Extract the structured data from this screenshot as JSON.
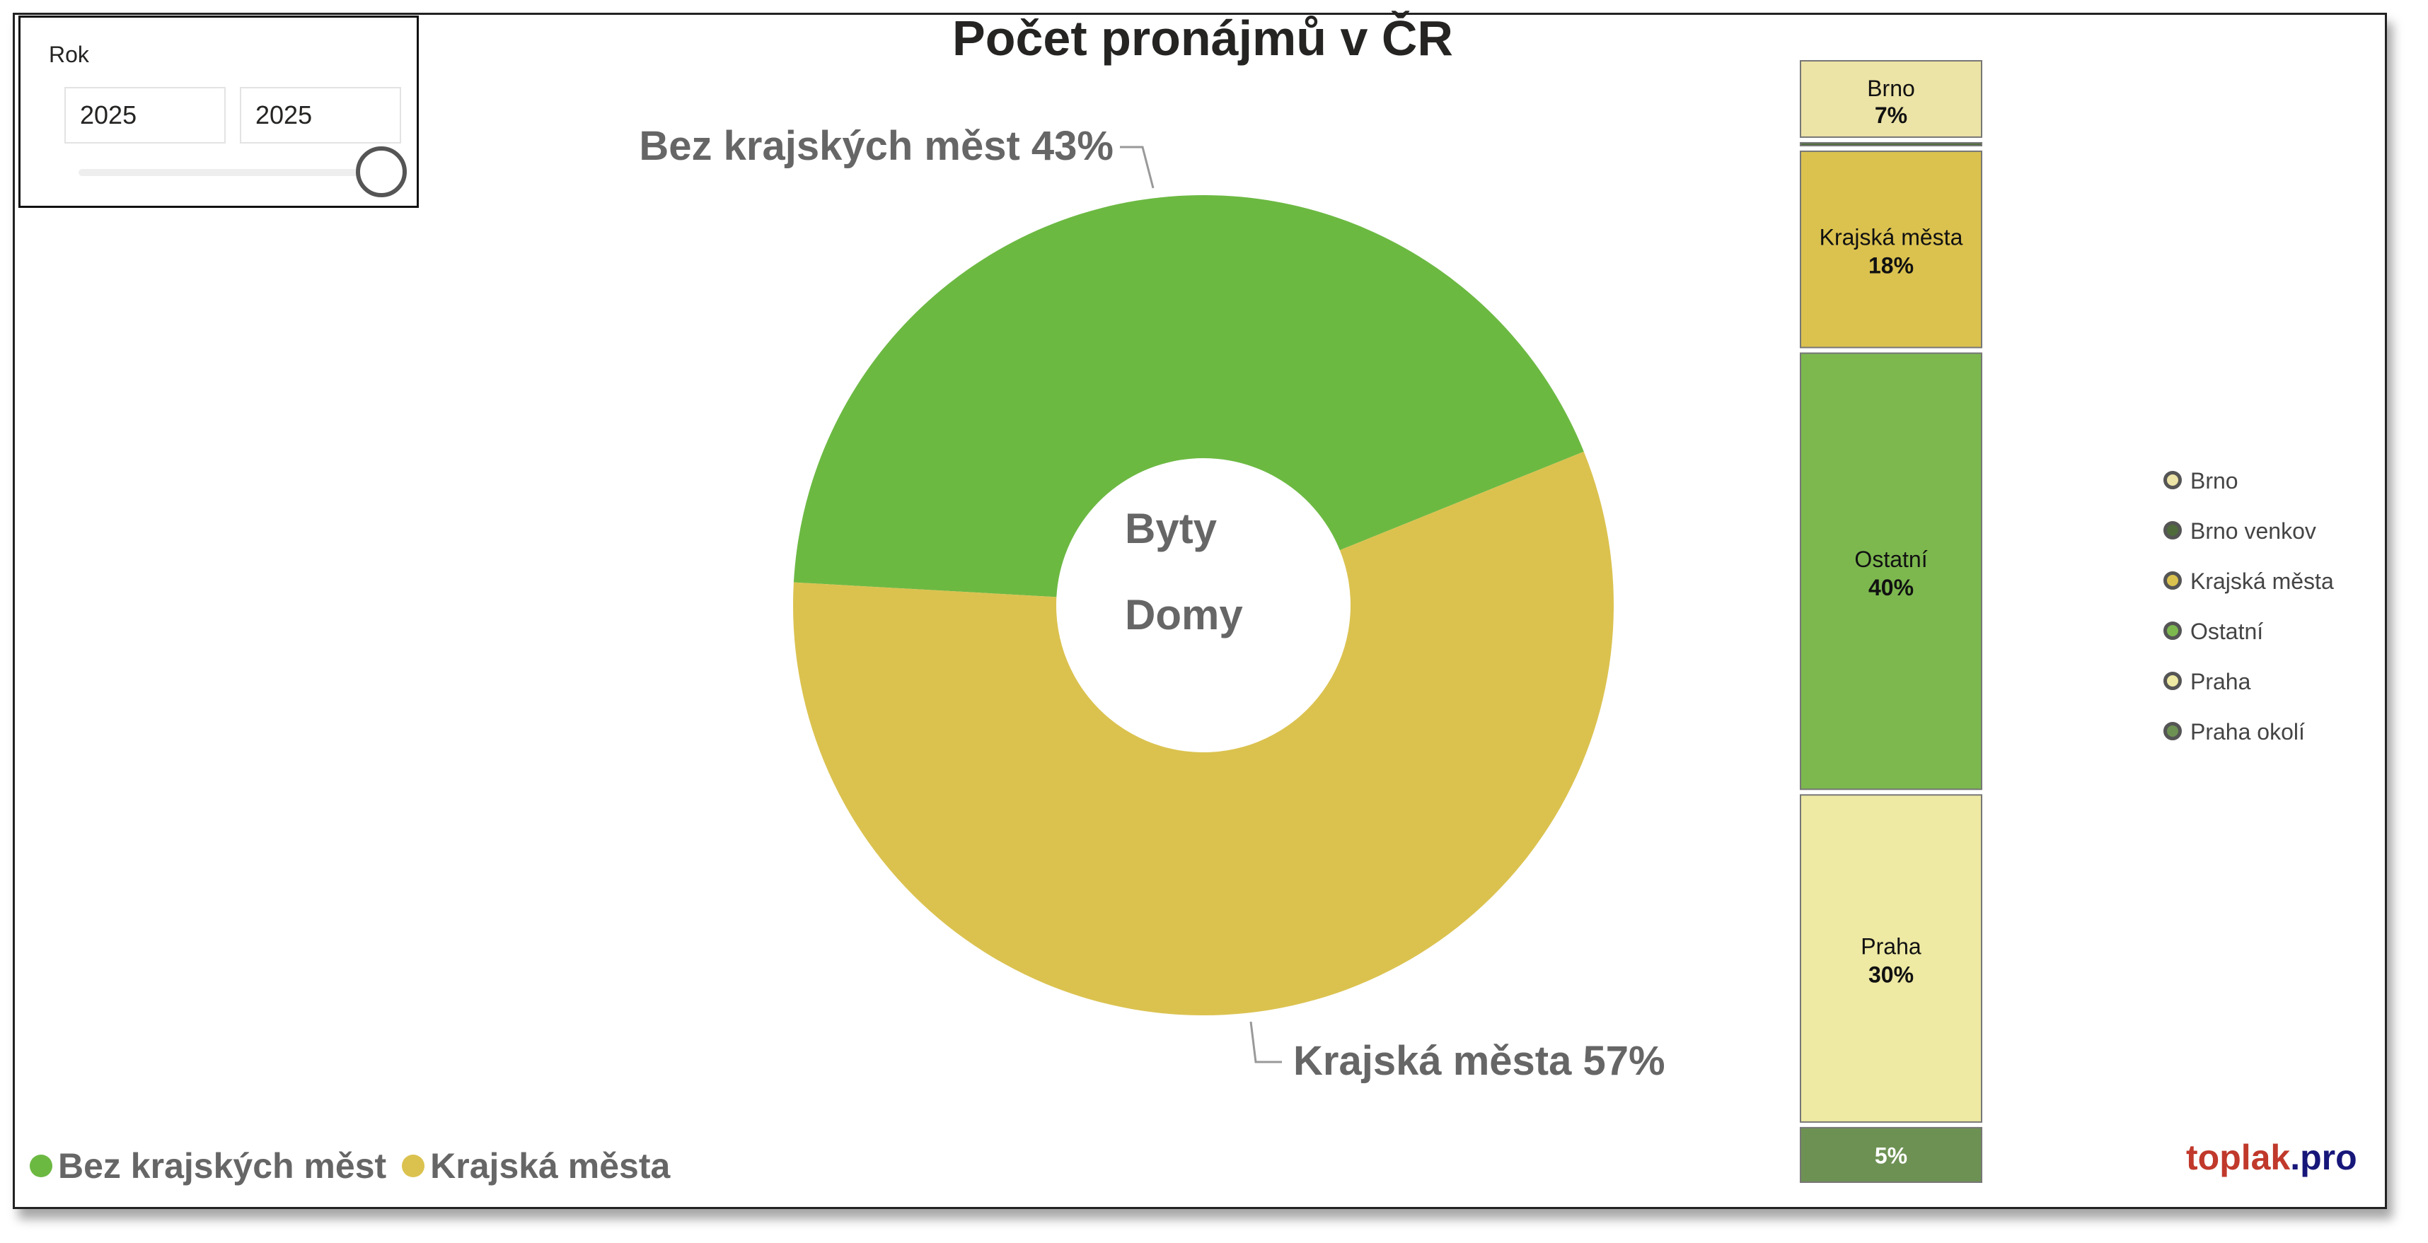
{
  "slicer": {
    "title": "Rok",
    "from": "2025",
    "to": "2025"
  },
  "chart_data": [
    {
      "type": "pie",
      "title": "Počet pronájmů v ČR",
      "subtype": "donut",
      "center_labels": [
        "Byty",
        "Domy"
      ],
      "slices": [
        {
          "name": "Bez krajských měst",
          "value": 43,
          "color": "#6cb942",
          "label": "Bez krajských měst 43%"
        },
        {
          "name": "Krajská města",
          "value": 57,
          "color": "#dbc24f",
          "label": "Krajská města 57%"
        }
      ],
      "legend": {
        "position": "bottom-left"
      }
    },
    {
      "type": "bar",
      "subtype": "100% stacked",
      "segments": [
        {
          "name": "Brno",
          "value": 7,
          "label": "7%",
          "color": "#ece3a6"
        },
        {
          "name": "Brno venkov",
          "value": 0,
          "label": "",
          "color": "#4f6b3c"
        },
        {
          "name": "Krajská města",
          "value": 18,
          "label": "18%",
          "color": "#dbc24f"
        },
        {
          "name": "Ostatní",
          "value": 40,
          "label": "40%",
          "color": "#7db84f"
        },
        {
          "name": "Praha",
          "value": 30,
          "label": "30%",
          "color": "#eee9a3"
        },
        {
          "name": "Praha okolí",
          "value": 5,
          "label": "5%",
          "color": "#6d9153"
        }
      ],
      "legend": {
        "position": "right",
        "items": [
          "Brno",
          "Brno venkov",
          "Krajská města",
          "Ostatní",
          "Praha",
          "Praha okolí"
        ],
        "colors": [
          "#ece3a6",
          "#4f6b3c",
          "#dbc24f",
          "#7db84f",
          "#eee9a3",
          "#6d9153"
        ]
      }
    }
  ],
  "bottom_legend": [
    {
      "label": "Bez krajských měst",
      "color": "#6cb942"
    },
    {
      "label": "Krajská města",
      "color": "#dbc24f"
    }
  ],
  "brand": {
    "part1": "toplak",
    "part2": ".pro"
  }
}
